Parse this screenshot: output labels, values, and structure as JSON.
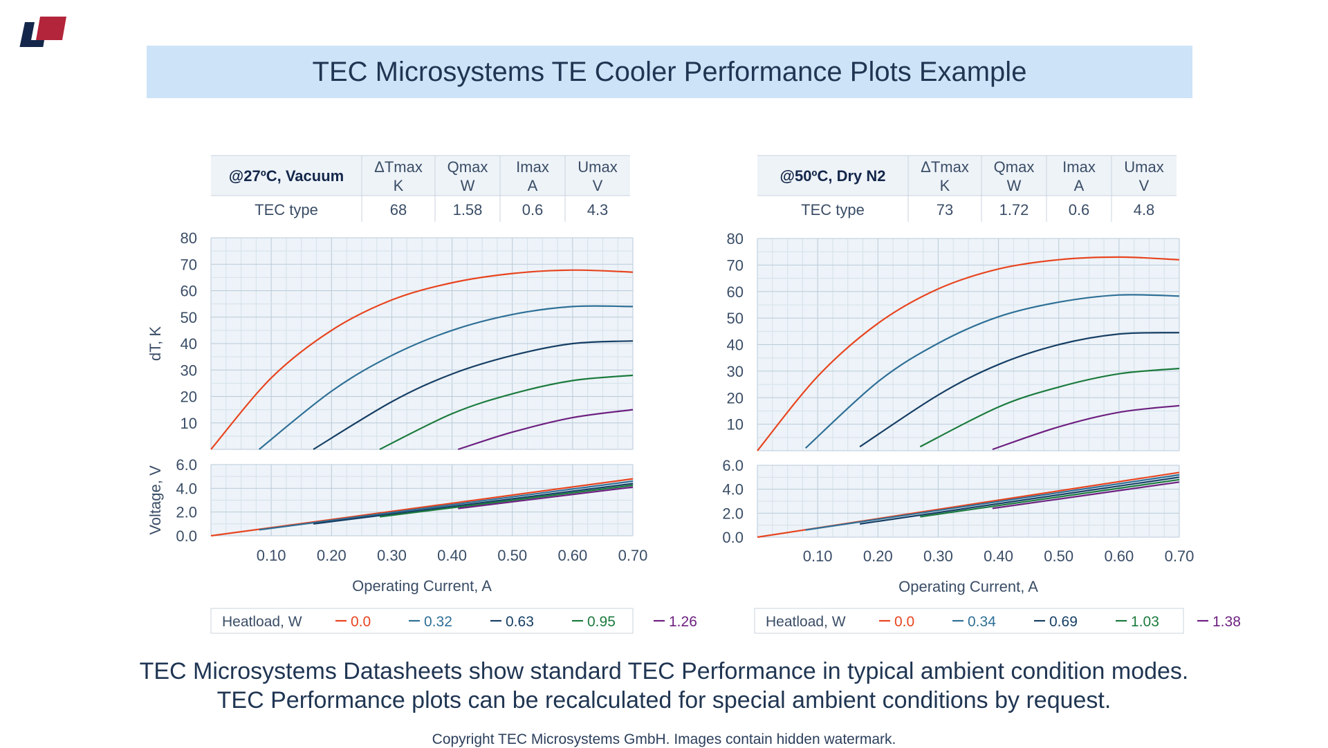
{
  "title": "TEC Microsystems TE Cooler Performance Plots Example",
  "caption_line1": "TEC Microsystems Datasheets show standard TEC Performance in typical ambient condition modes.",
  "caption_line2": "TEC Performance plots can be recalculated for special ambient conditions by request.",
  "copyright": "Copyright TEC Microsystems GmbH. Images contain hidden watermark.",
  "colors": {
    "series": [
      "#e8441f",
      "#2e6f96",
      "#163e64",
      "#1b7a3d",
      "#6d1f80"
    ],
    "grid_bg": "#edf3f8",
    "grid_minor": "#d5e1eb",
    "grid_major": "#b9cad8",
    "title_bg": "#cde3f7",
    "logo_red": "#b3253a",
    "logo_navy": "#14274a"
  },
  "chart_data": [
    {
      "type": "line",
      "table": {
        "condition": "@27ºC,  Vacuum",
        "headers": [
          [
            "ΔTmax",
            "K"
          ],
          [
            "Qmax",
            "W"
          ],
          [
            "Imax",
            "A"
          ],
          [
            "Umax",
            "V"
          ]
        ],
        "row_label": "TEC type",
        "values": [
          "68",
          "1.58",
          "0.6",
          "4.3"
        ]
      },
      "dt_plot": {
        "ylabel": "dT, K",
        "ylim": [
          0,
          80
        ],
        "yticks": [
          "10",
          "20",
          "30",
          "40",
          "50",
          "60",
          "70",
          "80"
        ],
        "series": [
          {
            "name": "0.0",
            "points": [
              [
                0,
                0
              ],
              [
                0.1,
                27
              ],
              [
                0.2,
                45
              ],
              [
                0.3,
                56.5
              ],
              [
                0.4,
                63
              ],
              [
                0.5,
                66.5
              ],
              [
                0.6,
                67.8
              ],
              [
                0.7,
                67
              ]
            ]
          },
          {
            "name": "0.32",
            "points": [
              [
                0.08,
                0
              ],
              [
                0.2,
                22
              ],
              [
                0.3,
                35.5
              ],
              [
                0.4,
                45
              ],
              [
                0.5,
                51
              ],
              [
                0.6,
                54
              ],
              [
                0.7,
                54
              ]
            ]
          },
          {
            "name": "0.63",
            "points": [
              [
                0.17,
                0
              ],
              [
                0.3,
                18
              ],
              [
                0.4,
                28.5
              ],
              [
                0.5,
                35.5
              ],
              [
                0.6,
                40
              ],
              [
                0.7,
                41
              ]
            ]
          },
          {
            "name": "0.95",
            "points": [
              [
                0.28,
                0
              ],
              [
                0.4,
                13.5
              ],
              [
                0.5,
                21
              ],
              [
                0.6,
                26
              ],
              [
                0.7,
                28
              ]
            ]
          },
          {
            "name": "1.26",
            "points": [
              [
                0.41,
                0
              ],
              [
                0.5,
                6.5
              ],
              [
                0.6,
                12
              ],
              [
                0.7,
                15
              ]
            ]
          }
        ]
      },
      "voltage_plot": {
        "ylabel": "Voltage, V",
        "ylim": [
          0,
          6
        ],
        "yticks": [
          "0.0",
          "2.0",
          "4.0",
          "6.0"
        ],
        "series": [
          {
            "name": "0.0",
            "points": [
              [
                0,
                0
              ],
              [
                0.7,
                4.8
              ]
            ]
          },
          {
            "name": "0.32",
            "points": [
              [
                0.08,
                0.5
              ],
              [
                0.7,
                4.6
              ]
            ]
          },
          {
            "name": "0.63",
            "points": [
              [
                0.17,
                1.0
              ],
              [
                0.7,
                4.4
              ]
            ]
          },
          {
            "name": "0.95",
            "points": [
              [
                0.28,
                1.6
              ],
              [
                0.7,
                4.25
              ]
            ]
          },
          {
            "name": "1.26",
            "points": [
              [
                0.41,
                2.3
              ],
              [
                0.7,
                4.1
              ]
            ]
          }
        ]
      },
      "xlabel": "Operating Current, A",
      "xlim": [
        0,
        0.7
      ],
      "xticks": [
        "0.10",
        "0.20",
        "0.30",
        "0.40",
        "0.50",
        "0.60",
        "0.70"
      ],
      "legend": {
        "title": "Heatload, W",
        "entries": [
          "0.0",
          "0.32",
          "0.63",
          "0.95",
          "1.26"
        ]
      }
    },
    {
      "type": "line",
      "table": {
        "condition": "@50ºC, Dry N2",
        "headers": [
          [
            "ΔTmax",
            "K"
          ],
          [
            "Qmax",
            "W"
          ],
          [
            "Imax",
            "A"
          ],
          [
            "Umax",
            "V"
          ]
        ],
        "row_label": "TEC type",
        "values": [
          "73",
          "1.72",
          "0.6",
          "4.8"
        ]
      },
      "dt_plot": {
        "ylabel": "",
        "ylim": [
          0,
          80
        ],
        "yticks": [
          "10",
          "20",
          "30",
          "40",
          "50",
          "60",
          "70",
          "80"
        ],
        "series": [
          {
            "name": "0.0",
            "points": [
              [
                0,
                0
              ],
              [
                0.1,
                28
              ],
              [
                0.2,
                48
              ],
              [
                0.3,
                61
              ],
              [
                0.4,
                68.5
              ],
              [
                0.5,
                72
              ],
              [
                0.6,
                73
              ],
              [
                0.7,
                72
              ]
            ]
          },
          {
            "name": "0.34",
            "points": [
              [
                0.08,
                1
              ],
              [
                0.2,
                26
              ],
              [
                0.3,
                40.5
              ],
              [
                0.4,
                50.5
              ],
              [
                0.5,
                56
              ],
              [
                0.6,
                58.7
              ],
              [
                0.7,
                58.3
              ]
            ]
          },
          {
            "name": "0.69",
            "points": [
              [
                0.17,
                1.5
              ],
              [
                0.3,
                21
              ],
              [
                0.4,
                32.5
              ],
              [
                0.5,
                40
              ],
              [
                0.6,
                44
              ],
              [
                0.7,
                44.5
              ]
            ]
          },
          {
            "name": "1.03",
            "points": [
              [
                0.27,
                1.5
              ],
              [
                0.4,
                16.5
              ],
              [
                0.5,
                24
              ],
              [
                0.6,
                29
              ],
              [
                0.7,
                31
              ]
            ]
          },
          {
            "name": "1.38",
            "points": [
              [
                0.39,
                0.5
              ],
              [
                0.5,
                9
              ],
              [
                0.6,
                14.5
              ],
              [
                0.7,
                17
              ]
            ]
          }
        ]
      },
      "voltage_plot": {
        "ylabel": "",
        "ylim": [
          0,
          6
        ],
        "yticks": [
          "0.0",
          "2.0",
          "4.0",
          "6.0"
        ],
        "series": [
          {
            "name": "0.0",
            "points": [
              [
                0,
                0
              ],
              [
                0.7,
                5.4
              ]
            ]
          },
          {
            "name": "0.34",
            "points": [
              [
                0.08,
                0.6
              ],
              [
                0.7,
                5.2
              ]
            ]
          },
          {
            "name": "0.69",
            "points": [
              [
                0.17,
                1.1
              ],
              [
                0.7,
                5.0
              ]
            ]
          },
          {
            "name": "1.03",
            "points": [
              [
                0.27,
                1.7
              ],
              [
                0.7,
                4.8
              ]
            ]
          },
          {
            "name": "1.38",
            "points": [
              [
                0.39,
                2.4
              ],
              [
                0.7,
                4.6
              ]
            ]
          }
        ]
      },
      "xlabel": "Operating Current, A",
      "xlim": [
        0,
        0.7
      ],
      "xticks": [
        "0.10",
        "0.20",
        "0.30",
        "0.40",
        "0.50",
        "0.60",
        "0.70"
      ],
      "legend": {
        "title": "Heatload, W",
        "entries": [
          "0.0",
          "0.34",
          "0.69",
          "1.03",
          "1.38"
        ]
      }
    }
  ]
}
